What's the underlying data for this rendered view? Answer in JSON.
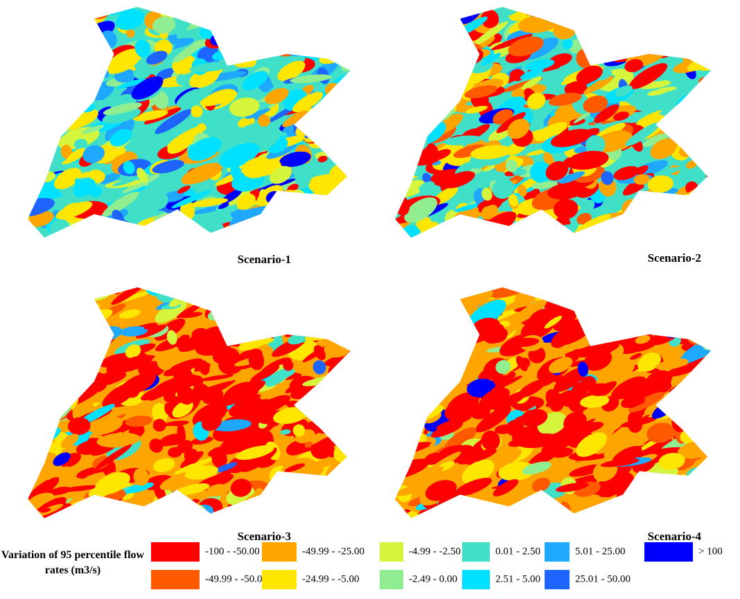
{
  "panels": [
    {
      "label": "Scenario-1"
    },
    {
      "label": "Scenario-2"
    },
    {
      "label": "Scenario-3"
    },
    {
      "label": "Scenario-4"
    }
  ],
  "legend": {
    "title": "Variation of 95 percentile flow rates (m3/s)",
    "items": [
      {
        "label": "-100 - -50.00",
        "color": "#ff0000"
      },
      {
        "label": "-49.99 - -50.00",
        "color": "#ff5a00"
      },
      {
        "label": "-49.99 - -25.00",
        "color": "#ffa500"
      },
      {
        "label": "-24.99 - -5.00",
        "color": "#ffe600"
      },
      {
        "label": "-4.99 - -2.50",
        "color": "#d4f53c"
      },
      {
        "label": "-2.49 - 0.00",
        "color": "#90ee90"
      },
      {
        "label": "0.01 - 2.50",
        "color": "#40e0c8"
      },
      {
        "label": "2.51 - 5.00",
        "color": "#00e0ff"
      },
      {
        "label": "5.01 - 25.00",
        "color": "#1fa8ff"
      },
      {
        "label": "25.01 - 50.00",
        "color": "#1e64ff"
      },
      {
        "label": "> 100",
        "color": "#0000ff"
      }
    ]
  }
}
